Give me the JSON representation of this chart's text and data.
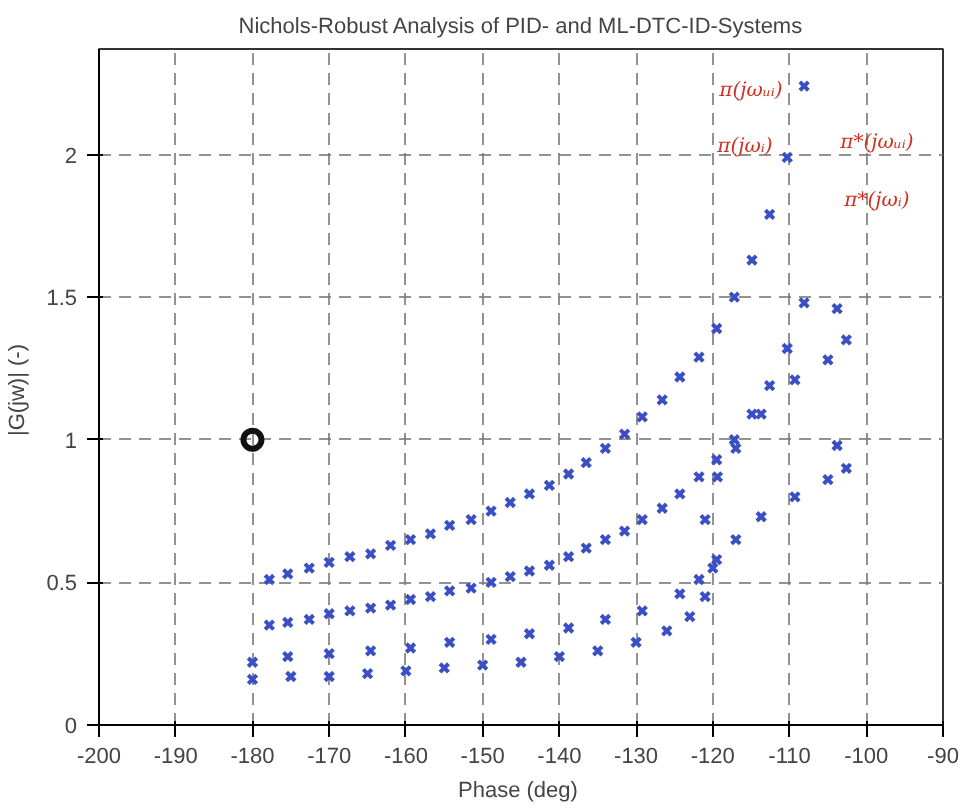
{
  "chart_data": {
    "type": "scatter",
    "title": "Nichols-Robust Analysis of PID- and ML-DTC-ID-Systems",
    "xlabel": "Phase  (deg)",
    "ylabel": "|G(jw)|  (-)",
    "xlim": [
      -200,
      -90
    ],
    "ylim": [
      0,
      2.37
    ],
    "xticks": [
      -200,
      -190,
      -180,
      -170,
      -160,
      -150,
      -140,
      -130,
      -120,
      -110,
      -100,
      -90
    ],
    "yticks": [
      0,
      0.5,
      1,
      1.5,
      2
    ],
    "grid": true,
    "marker": "cross",
    "series": [
      {
        "color": "#3a4fc4",
        "x": [
          -177.8,
          -175.4,
          -172.6,
          -170.0,
          -167.3,
          -164.6,
          -162.0,
          -159.4,
          -156.8,
          -154.3,
          -151.5,
          -148.9,
          -146.4,
          -143.9,
          -141.3,
          -138.8,
          -136.5,
          -134.0,
          -131.5,
          -129.2,
          -126.6,
          -124.3,
          -121.8,
          -119.5,
          -117.2,
          -114.9,
          -112.6,
          -110.3,
          -108.1
        ],
        "values": [
          0.51,
          0.53,
          0.55,
          0.57,
          0.59,
          0.6,
          0.63,
          0.65,
          0.67,
          0.7,
          0.72,
          0.75,
          0.78,
          0.81,
          0.84,
          0.88,
          0.92,
          0.97,
          1.02,
          1.08,
          1.14,
          1.22,
          1.29,
          1.39,
          1.5,
          1.63,
          1.79,
          1.99,
          2.24
        ]
      },
      {
        "color": "#3a4fc4",
        "x": [
          -177.8,
          -175.4,
          -172.6,
          -170.0,
          -167.3,
          -164.6,
          -162.0,
          -159.4,
          -156.8,
          -154.3,
          -151.5,
          -148.9,
          -146.4,
          -143.9,
          -141.3,
          -138.8,
          -136.5,
          -134.0,
          -131.5,
          -129.2,
          -126.6,
          -124.3,
          -121.8,
          -119.5,
          -117.2,
          -114.9,
          -112.6,
          -110.3,
          -108.1
        ],
        "values": [
          0.35,
          0.36,
          0.37,
          0.39,
          0.4,
          0.41,
          0.42,
          0.44,
          0.45,
          0.47,
          0.48,
          0.5,
          0.52,
          0.54,
          0.56,
          0.59,
          0.62,
          0.65,
          0.68,
          0.72,
          0.76,
          0.81,
          0.87,
          0.93,
          1.0,
          1.09,
          1.19,
          1.32,
          1.48
        ]
      },
      {
        "color": "#3a4fc4",
        "x": [
          -180,
          -175.4,
          -170.0,
          -164.6,
          -159.4,
          -154.3,
          -148.9,
          -143.9,
          -138.8,
          -134.0,
          -129.2,
          -124.3,
          -121.8,
          -119.5,
          -117.0,
          -113.7,
          -109.3,
          -105.0,
          -102.6
        ],
        "values": [
          0.22,
          0.24,
          0.25,
          0.26,
          0.27,
          0.29,
          0.3,
          0.32,
          0.34,
          0.37,
          0.4,
          0.46,
          0.51,
          0.58,
          0.65,
          0.73,
          0.8,
          0.86,
          0.9
        ]
      },
      {
        "color": "#3a4fc4",
        "x": [
          -180,
          -175,
          -170,
          -165,
          -160,
          -155,
          -150,
          -145,
          -140,
          -135,
          -130,
          -126,
          -123,
          -121,
          -120
        ],
        "values": [
          0.16,
          0.17,
          0.17,
          0.18,
          0.19,
          0.2,
          0.21,
          0.22,
          0.24,
          0.26,
          0.29,
          0.33,
          0.38,
          0.45,
          0.55
        ]
      },
      {
        "color": "#3a4fc4",
        "x": [
          -121,
          -119.4,
          -117,
          -113.7,
          -109.3,
          -105,
          -103.8,
          -102.6,
          -103.8
        ],
        "values": [
          0.72,
          0.87,
          0.97,
          1.09,
          1.21,
          1.28,
          1.46,
          1.35,
          0.98
        ]
      },
      {
        "color": "#111111",
        "marker": "circle",
        "x": [
          -180
        ],
        "values": [
          1
        ]
      }
    ],
    "annotations": [
      "π(jωᵤᵢ)",
      "π(jωᵢ)",
      "π*(jωᵤᵢ)",
      "π*(jωᵢ)"
    ]
  }
}
